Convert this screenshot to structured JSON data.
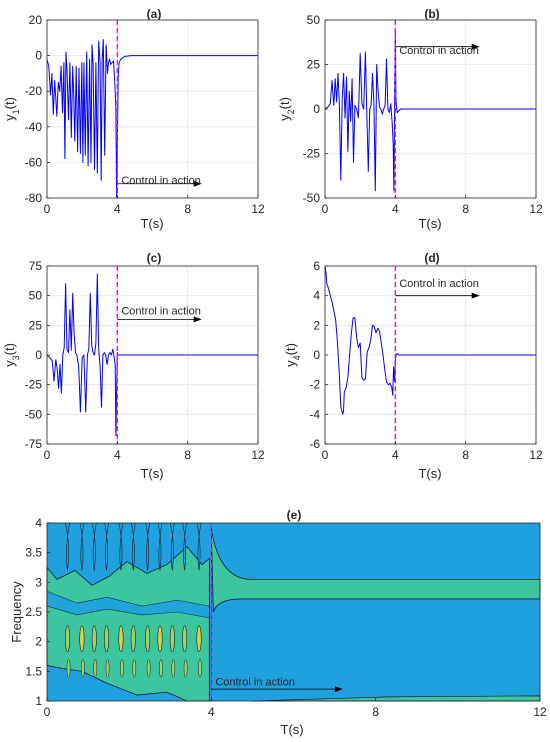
{
  "colors": {
    "signal": "#0000ff",
    "control_line": "#ff00ff",
    "grid": "#e6e6e6",
    "axis": "#262626",
    "annotation_arrow": "#000000",
    "contour_low": "#1fa1e0",
    "contour_mid": "#3cc6a0",
    "contour_high": "#9bd36a",
    "contour_peak": "#d8d43c",
    "contour_line": "#1a1a2e"
  },
  "chart_data": [
    {
      "type": "line",
      "title": "(a)",
      "xlabel": "T(s)",
      "ylabel": "y1(t)",
      "ylabel_main": "y",
      "ylabel_sub": "1",
      "ylabel_suffix": "(t)",
      "xlim": [
        0,
        12
      ],
      "ylim": [
        -80,
        20
      ],
      "xticks": [
        "0",
        "4",
        "8",
        "12"
      ],
      "yticks": [
        "20",
        "0",
        "-20",
        "-40",
        "-60",
        "-80"
      ],
      "grid": true,
      "control_time": 4,
      "annotation": "Control in action",
      "annotation_y": -72,
      "arrow": {
        "x_start": 4.0,
        "x_end": 8.8,
        "y": -72
      },
      "series": [
        {
          "x": [
            0,
            0.1,
            0.2,
            0.28,
            0.36,
            0.44,
            0.5,
            0.56,
            0.64,
            0.72,
            0.8,
            0.88,
            0.96,
            1.02,
            1.08,
            1.14,
            1.22,
            1.3,
            1.38,
            1.46,
            1.52,
            1.58,
            1.66,
            1.74,
            1.82,
            1.9,
            1.98,
            2.04,
            2.1,
            2.18,
            2.26,
            2.34,
            2.42,
            2.5,
            2.56,
            2.62,
            2.7,
            2.78,
            2.86,
            2.94,
            3.02,
            3.08,
            3.14,
            3.2,
            3.28,
            3.36,
            3.44,
            3.5,
            3.56,
            3.62,
            3.7,
            3.78,
            3.86,
            3.92,
            3.96,
            4.0,
            4.05,
            4.1,
            4.2,
            4.4,
            4.8,
            6,
            8,
            10,
            12
          ],
          "y": [
            -2,
            -6,
            -22,
            -10,
            -33,
            -14,
            -24,
            -34,
            -15,
            -20,
            -6,
            -32,
            -4,
            -58,
            2,
            -8,
            -36,
            -4,
            -46,
            -6,
            -22,
            -48,
            -6,
            -54,
            -7,
            -55,
            -4,
            -60,
            -4,
            -56,
            2,
            -62,
            -2,
            -60,
            6,
            -5,
            -64,
            -4,
            -66,
            8,
            -4,
            -70,
            -2,
            9,
            -56,
            6,
            -10,
            -4,
            -2,
            -5,
            -4,
            -3,
            -16,
            -30,
            -80,
            -50,
            -12,
            -4,
            -2,
            -0.5,
            0,
            0,
            0,
            0,
            0
          ]
        }
      ]
    },
    {
      "type": "line",
      "title": "(b)",
      "xlabel": "T(s)",
      "ylabel": "y2(t)",
      "ylabel_main": "y",
      "ylabel_sub": "2",
      "ylabel_suffix": "(t)",
      "xlim": [
        0,
        12
      ],
      "ylim": [
        -50,
        50
      ],
      "xticks": [
        "0",
        "4",
        "8",
        "12"
      ],
      "yticks": [
        "50",
        "25",
        "0",
        "-25",
        "-50"
      ],
      "grid": true,
      "control_time": 4,
      "annotation": "Control in action",
      "annotation_y": 31,
      "arrow": {
        "x_start": 4.0,
        "x_end": 8.8,
        "y": 35
      },
      "series": [
        {
          "x": [
            0,
            0.15,
            0.3,
            0.4,
            0.5,
            0.58,
            0.66,
            0.74,
            0.82,
            0.9,
            0.98,
            1.06,
            1.14,
            1.22,
            1.3,
            1.38,
            1.46,
            1.54,
            1.62,
            1.7,
            1.8,
            1.9,
            2.0,
            2.1,
            2.2,
            2.3,
            2.38,
            2.46,
            2.54,
            2.62,
            2.7,
            2.78,
            2.86,
            2.94,
            3.02,
            3.1,
            3.18,
            3.26,
            3.34,
            3.42,
            3.5,
            3.58,
            3.66,
            3.74,
            3.82,
            3.88,
            3.92,
            3.96,
            4.0,
            4.04,
            4.1,
            4.3,
            5,
            8,
            12
          ],
          "y": [
            0,
            1,
            3,
            16,
            2,
            17,
            4,
            20,
            2,
            -40,
            6,
            20,
            -5,
            18,
            -24,
            10,
            -7,
            17,
            -30,
            2,
            0,
            -5,
            31,
            3,
            0,
            32,
            -2,
            -35,
            0,
            2,
            20,
            3,
            -46,
            25,
            10,
            1,
            0,
            -3,
            0,
            2,
            28,
            0,
            -2,
            3,
            -8,
            -20,
            -46,
            2,
            44,
            5,
            -2,
            0,
            0,
            0,
            0
          ]
        }
      ]
    },
    {
      "type": "line",
      "title": "(c)",
      "xlabel": "T(s)",
      "ylabel": "y3(t)",
      "ylabel_main": "y",
      "ylabel_sub": "3",
      "ylabel_suffix": "(t)",
      "xlim": [
        0,
        12
      ],
      "ylim": [
        -75,
        75
      ],
      "xticks": [
        "0",
        "4",
        "8",
        "12"
      ],
      "yticks": [
        "75",
        "50",
        "25",
        "0",
        "-25",
        "-50",
        "-75"
      ],
      "grid": true,
      "control_time": 4,
      "annotation": "Control in action",
      "annotation_y": 34,
      "arrow": {
        "x_start": 4.0,
        "x_end": 8.8,
        "y": 30
      },
      "series": [
        {
          "x": [
            0,
            0.15,
            0.3,
            0.4,
            0.5,
            0.58,
            0.66,
            0.74,
            0.82,
            0.9,
            0.98,
            1.06,
            1.14,
            1.22,
            1.3,
            1.38,
            1.46,
            1.54,
            1.62,
            1.7,
            1.8,
            1.9,
            2.0,
            2.1,
            2.2,
            2.3,
            2.38,
            2.46,
            2.54,
            2.62,
            2.7,
            2.78,
            2.86,
            2.94,
            3.02,
            3.1,
            3.18,
            3.26,
            3.34,
            3.42,
            3.5,
            3.58,
            3.66,
            3.74,
            3.82,
            3.88,
            3.92,
            3.96,
            4.0,
            4.04,
            4.1,
            4.3,
            5,
            8,
            12
          ],
          "y": [
            0,
            -2,
            -5,
            -22,
            -4,
            -12,
            -28,
            -8,
            -32,
            0,
            6,
            60,
            5,
            2,
            38,
            4,
            52,
            18,
            2,
            0,
            -10,
            -48,
            -2,
            0,
            -48,
            0,
            5,
            52,
            8,
            2,
            0,
            10,
            68,
            5,
            -10,
            -44,
            0,
            2,
            0,
            -8,
            0,
            2,
            0,
            5,
            -2,
            -8,
            -68,
            -30,
            2,
            0,
            0,
            0,
            0,
            0,
            0
          ]
        }
      ]
    },
    {
      "type": "line",
      "title": "(d)",
      "xlabel": "T(s)",
      "ylabel": "y4(t)",
      "ylabel_main": "y",
      "ylabel_sub": "4",
      "ylabel_suffix": "(t)",
      "xlim": [
        0,
        12
      ],
      "ylim": [
        -6,
        6
      ],
      "xticks": [
        "0",
        "4",
        "8",
        "12"
      ],
      "yticks": [
        "6",
        "4",
        "2",
        "0",
        "-2",
        "-4",
        "-6"
      ],
      "grid": true,
      "control_time": 4,
      "annotation": "Control in action",
      "annotation_y": 4.6,
      "arrow": {
        "x_start": 4.0,
        "x_end": 8.8,
        "y": 4.0
      },
      "series": [
        {
          "x": [
            0,
            0.05,
            0.1,
            0.2,
            0.3,
            0.4,
            0.5,
            0.6,
            0.7,
            0.8,
            0.9,
            1.0,
            1.05,
            1.1,
            1.2,
            1.3,
            1.4,
            1.5,
            1.6,
            1.7,
            1.8,
            1.9,
            2.0,
            2.1,
            2.2,
            2.3,
            2.4,
            2.5,
            2.6,
            2.7,
            2.8,
            2.9,
            3.0,
            3.1,
            3.2,
            3.3,
            3.4,
            3.5,
            3.6,
            3.7,
            3.8,
            3.85,
            3.9,
            3.95,
            4.0,
            4.05,
            4.1,
            4.2,
            4.4,
            5,
            8,
            12
          ],
          "y": [
            6,
            5.6,
            4.8,
            4.5,
            4.0,
            3.6,
            3.0,
            2.4,
            1.0,
            -1.0,
            -3.5,
            -4.0,
            -3.8,
            -2.5,
            -2.2,
            -1.5,
            0,
            1.5,
            2.5,
            2.5,
            1.2,
            0.5,
            0.8,
            -1.5,
            -1.7,
            -1.6,
            0.2,
            0.5,
            1.0,
            2.0,
            1.9,
            1.5,
            1.8,
            1.6,
            0.8,
            0,
            -1.0,
            -1.8,
            -2.0,
            -1.9,
            -2.2,
            -2.7,
            -0.8,
            -1.8,
            -0.3,
            0,
            0.1,
            0,
            0,
            0,
            0,
            0
          ]
        }
      ]
    },
    {
      "type": "heatmap",
      "title": "(e)",
      "xlabel": "T(s)",
      "ylabel": "Frequency",
      "xlim": [
        0,
        12
      ],
      "ylim": [
        1,
        4
      ],
      "xticks": [
        "0",
        "4",
        "8",
        "12"
      ],
      "yticks": [
        "4",
        "3.5",
        "3",
        "2.5",
        "2",
        "1.5",
        "1"
      ],
      "control_time": 4,
      "annotation": "Control in action",
      "annotation_y": 1.26,
      "arrow": {
        "x_start": 4.0,
        "x_end": 7.2,
        "y": 1.2
      },
      "post_control_band": {
        "y_low": 2.72,
        "y_high": 3.05
      },
      "post_control_low_band": {
        "y_top": 1.07
      },
      "vertical_streaks": [
        0.5,
        0.85,
        1.15,
        1.45,
        1.8,
        2.1,
        2.45,
        2.75,
        3.05,
        3.35,
        3.7
      ]
    }
  ]
}
